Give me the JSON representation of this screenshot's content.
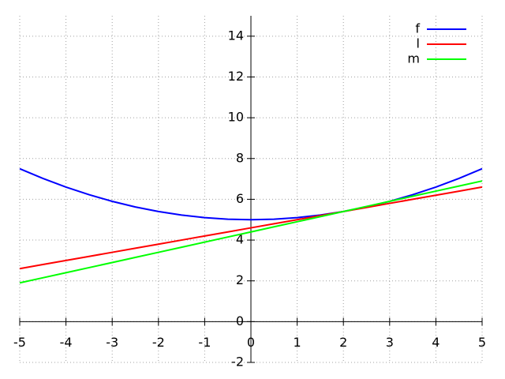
{
  "chart_data": {
    "type": "line",
    "x": [
      -5,
      -4.5,
      -4,
      -3.5,
      -3,
      -2.5,
      -2,
      -1.5,
      -1,
      -0.5,
      0,
      0.5,
      1,
      1.5,
      2,
      2.5,
      3,
      3.5,
      4,
      4.5,
      5
    ],
    "series": [
      {
        "name": "f",
        "color": "#0000ff",
        "values": [
          7.5,
          7.025,
          6.6,
          6.225,
          5.9,
          5.625,
          5.4,
          5.225,
          5.1,
          5.025,
          5,
          5.025,
          5.1,
          5.225,
          5.4,
          5.625,
          5.9,
          6.225,
          6.6,
          7.025,
          7.5
        ]
      },
      {
        "name": "l",
        "color": "#ff0000",
        "values": [
          2.6,
          2.8,
          3.0,
          3.2,
          3.4,
          3.6,
          3.8,
          4.0,
          4.2,
          4.4,
          4.6,
          4.8,
          5.0,
          5.2,
          5.4,
          5.6,
          5.8,
          6.0,
          6.2,
          6.4,
          6.6
        ]
      },
      {
        "name": "m",
        "color": "#00ff00",
        "values": [
          1.9,
          2.15,
          2.4,
          2.65,
          2.9,
          3.15,
          3.4,
          3.65,
          3.9,
          4.15,
          4.4,
          4.65,
          4.9,
          5.15,
          5.4,
          5.65,
          5.9,
          6.15,
          6.4,
          6.65,
          6.9
        ]
      }
    ],
    "xlim": [
      -5,
      5
    ],
    "xticks": [
      -5,
      -4,
      -3,
      -2,
      -1,
      0,
      1,
      2,
      3,
      4,
      5
    ],
    "ylim": [
      -2,
      15
    ],
    "yticks": [
      -2,
      0,
      2,
      4,
      6,
      8,
      10,
      12,
      14
    ],
    "grid": true,
    "legend": "top right"
  }
}
